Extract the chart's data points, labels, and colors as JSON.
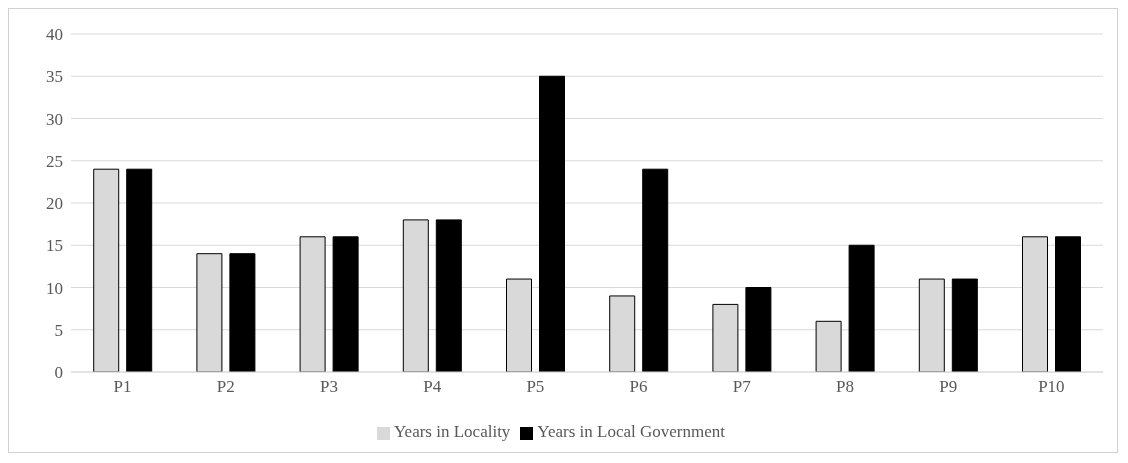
{
  "chart_data": {
    "type": "bar",
    "categories": [
      "P1",
      "P2",
      "P3",
      "P4",
      "P5",
      "P6",
      "P7",
      "P8",
      "P9",
      "P10"
    ],
    "series": [
      {
        "name": "Years in Locality",
        "color": "#d9d9d9",
        "values": [
          24,
          14,
          16,
          18,
          11,
          9,
          8,
          6,
          11,
          16
        ]
      },
      {
        "name": "Years in Local Government",
        "color": "#000000",
        "values": [
          24,
          14,
          16,
          18,
          35,
          24,
          10,
          15,
          11,
          16
        ]
      }
    ],
    "ylim": [
      0,
      40
    ],
    "yticks": [
      0,
      5,
      10,
      15,
      20,
      25,
      30,
      35,
      40
    ],
    "grid": "y",
    "legend": "bottom"
  }
}
